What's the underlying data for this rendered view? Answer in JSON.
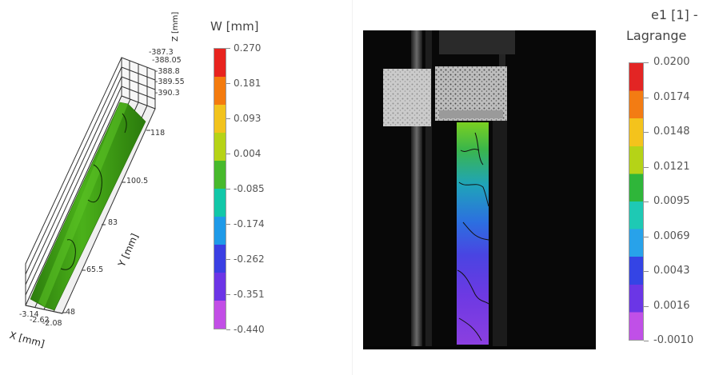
{
  "left_view": {
    "legend": {
      "title": "W [mm]",
      "ticks": [
        "0.270",
        "0.181",
        "0.093",
        "0.004",
        "-0.085",
        "-0.174",
        "-0.262",
        "-0.351",
        "-0.440"
      ],
      "colors": [
        "#e8231e",
        "#f47b0e",
        "#f2c31d",
        "#b6d316",
        "#47b92c",
        "#12c7a8",
        "#1f9ae8",
        "#3a3fe3",
        "#6c35e6",
        "#c24ee6"
      ]
    },
    "plot3d": {
      "z_ticks": [
        "-387.3",
        "-388.05",
        "-388.8",
        "-389.55",
        "-390.3"
      ],
      "z_label": "Z [mm]",
      "y_ticks": [
        "118",
        "100.5",
        "83",
        "65.5",
        "48"
      ],
      "y_label": "Y [mm]",
      "x_ticks": [
        "-3.14",
        "-2.62",
        "-2.08"
      ],
      "x_label": "X [mm]",
      "surface_color": "#3fa316"
    }
  },
  "right_view": {
    "legend": {
      "title_line1": "e1 [1] -",
      "title_line2": "Lagrange",
      "ticks": [
        "0.0200",
        "0.0174",
        "0.0148",
        "0.0121",
        "0.0095",
        "0.0069",
        "0.0043",
        "0.0016",
        "-0.0010"
      ],
      "colors": [
        "#e32524",
        "#f37c13",
        "#f4c31c",
        "#b5d317",
        "#2fb63a",
        "#1ec9b4",
        "#28a2ea",
        "#3444e5",
        "#6b36e6",
        "#c050e7"
      ]
    }
  }
}
